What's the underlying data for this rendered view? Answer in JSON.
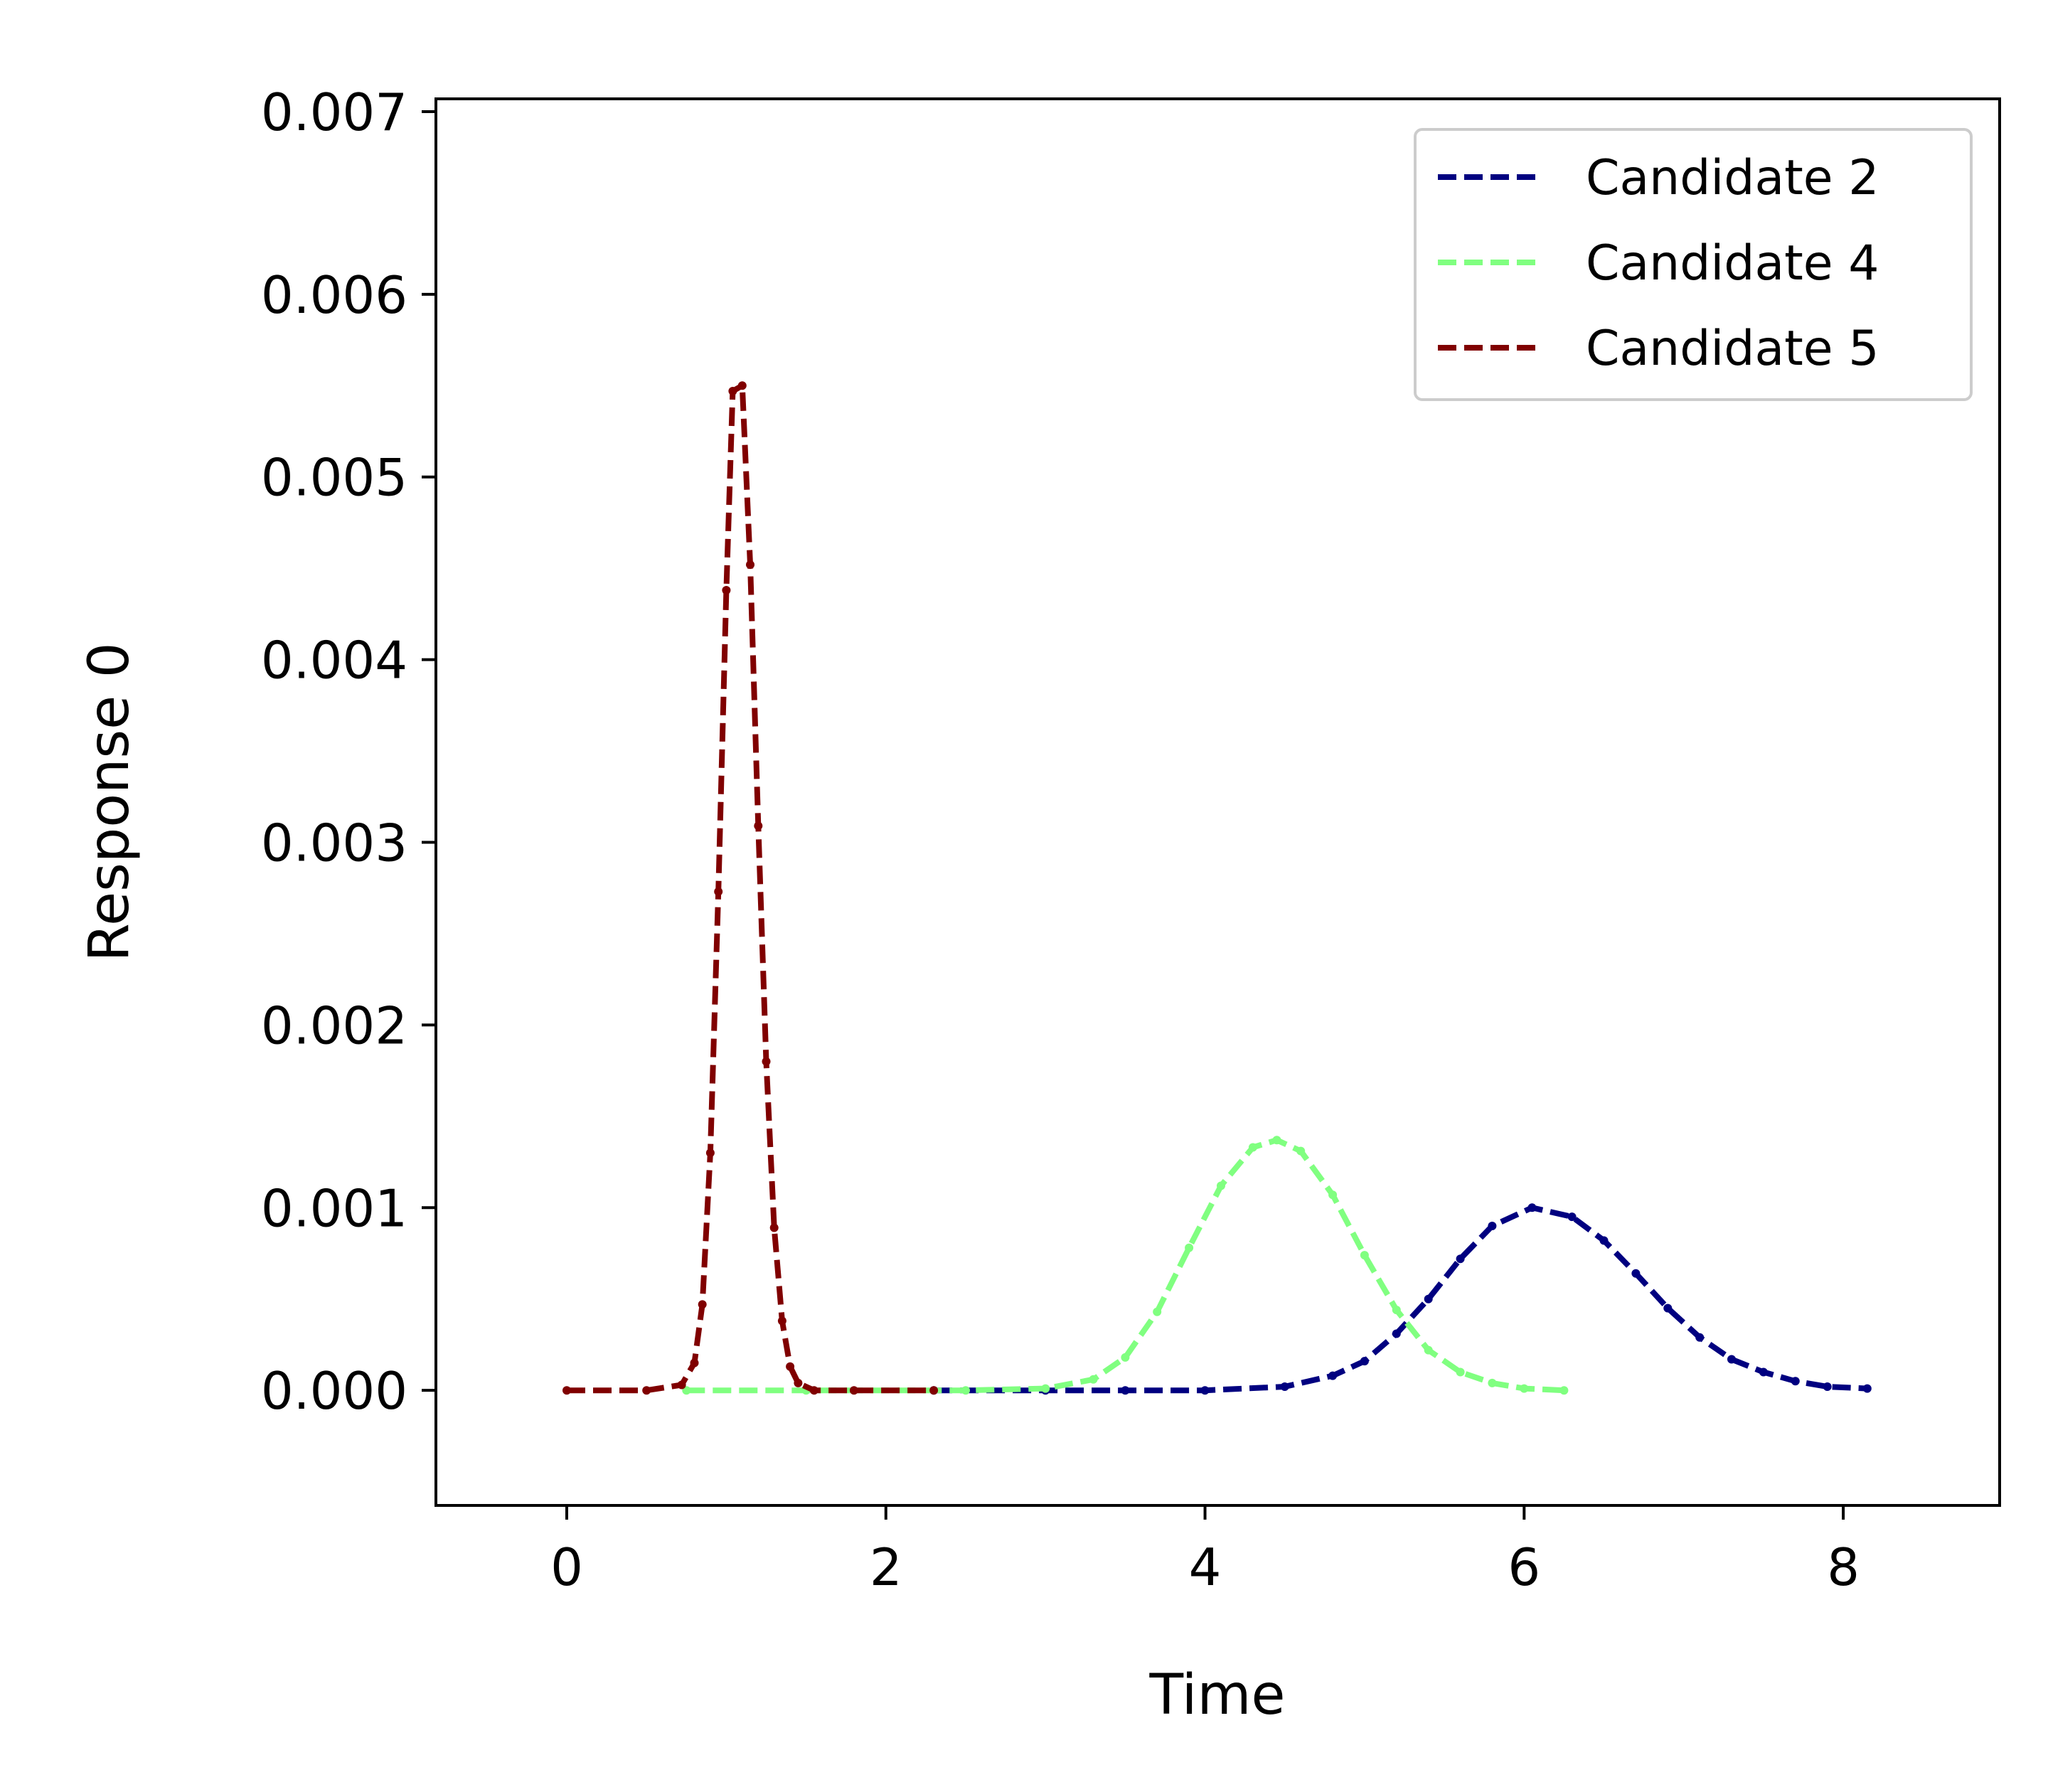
{
  "chart_data": {
    "type": "line",
    "xlabel": "Time",
    "ylabel": "Response 0",
    "xlim": [
      -0.82,
      8.98
    ],
    "ylim": [
      -0.00063,
      0.00707
    ],
    "xticks": [
      0,
      2,
      4,
      6,
      8
    ],
    "xtick_labels": [
      "0",
      "2",
      "4",
      "6",
      "8"
    ],
    "yticks": [
      0.0,
      0.001,
      0.002,
      0.003,
      0.004,
      0.005,
      0.006,
      0.007
    ],
    "ytick_labels": [
      "0.000",
      "0.001",
      "0.002",
      "0.003",
      "0.004",
      "0.005",
      "0.006",
      "0.007"
    ],
    "grid": false,
    "legend_position": "top-right",
    "series": [
      {
        "name": "Candidate 2",
        "color": "#000080",
        "line_style": "dashed",
        "markers": "dots",
        "x": [
          2.3,
          3.0,
          3.5,
          4.0,
          4.5,
          4.8,
          5.0,
          5.2,
          5.4,
          5.6,
          5.8,
          6.05,
          6.3,
          6.5,
          6.7,
          6.9,
          7.1,
          7.3,
          7.5,
          7.7,
          7.9,
          8.15
        ],
        "y": [
          0.0,
          0.0,
          0.0,
          0.0,
          2e-05,
          8e-05,
          0.00016,
          0.00031,
          0.0005,
          0.00072,
          0.0009,
          0.001,
          0.00095,
          0.00082,
          0.00064,
          0.00045,
          0.00029,
          0.00017,
          0.0001,
          5e-05,
          2e-05,
          1e-05
        ]
      },
      {
        "name": "Candidate 4",
        "color": "#80ff80",
        "line_style": "dashed",
        "markers": "dots",
        "x": [
          0.75,
          1.5,
          2.5,
          3.0,
          3.3,
          3.5,
          3.7,
          3.9,
          4.1,
          4.3,
          4.45,
          4.6,
          4.8,
          5.0,
          5.2,
          5.4,
          5.6,
          5.8,
          6.0,
          6.25
        ],
        "y": [
          0.0,
          0.0,
          0.0,
          1e-05,
          6e-05,
          0.00018,
          0.00043,
          0.00078,
          0.00112,
          0.00133,
          0.00137,
          0.00131,
          0.00107,
          0.00074,
          0.00044,
          0.00022,
          0.0001,
          4e-05,
          1e-05,
          0.0
        ]
      },
      {
        "name": "Candidate 5",
        "color": "#800000",
        "line_style": "dashed",
        "markers": "dots",
        "x": [
          0.0,
          0.5,
          0.72,
          0.8,
          0.85,
          0.9,
          0.95,
          1.0,
          1.04,
          1.1,
          1.15,
          1.2,
          1.25,
          1.3,
          1.35,
          1.4,
          1.45,
          1.55,
          1.8,
          2.3
        ],
        "y": [
          0.0,
          0.0,
          3e-05,
          0.00015,
          0.00047,
          0.0013,
          0.00273,
          0.00438,
          0.00547,
          0.0055,
          0.00452,
          0.00309,
          0.0018,
          0.00089,
          0.00038,
          0.00013,
          4e-05,
          0.0,
          0.0,
          0.0
        ]
      }
    ]
  }
}
